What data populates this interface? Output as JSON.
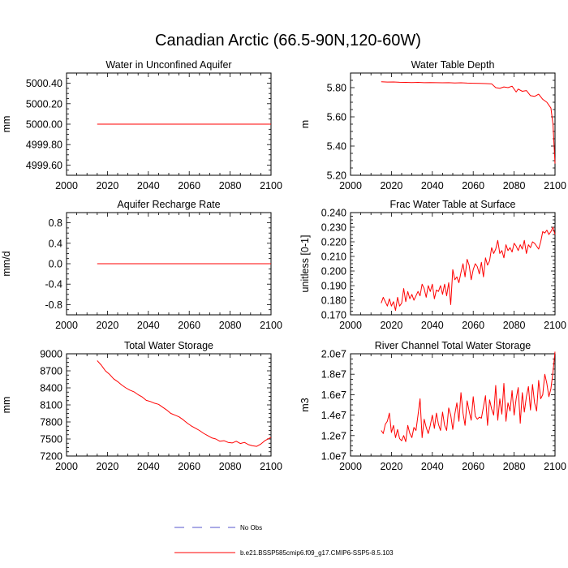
{
  "figure": {
    "title": "Canadian Arctic (66.5-90N,120-60W)",
    "legend": [
      {
        "label": "No Obs",
        "style": "dashed",
        "color": "#5555cc"
      },
      {
        "label": "b.e21.BSSP585cmip6.f09_g17.CMIP6-SSP5-8.5.103",
        "style": "solid",
        "color": "#ff0000"
      }
    ]
  },
  "chart_data": [
    {
      "id": "p1",
      "type": "line",
      "title": "Water in Unconfined Aquifer",
      "ylabel": "mm",
      "xlim": [
        2000,
        2100
      ],
      "xticks": [
        2000,
        2020,
        2040,
        2060,
        2080,
        2100
      ],
      "ylim": [
        4999.5,
        5000.5
      ],
      "yticks": [
        4999.6,
        4999.8,
        5000.0,
        5000.2,
        5000.4
      ],
      "yticklabels": [
        "4999.60",
        "4999.80",
        "5000.00",
        "5000.20",
        "5000.40"
      ],
      "series": [
        {
          "name": "b.e21.BSSP585cmip6.f09_g17.CMIP6-SSP5-8.5.103",
          "color": "#ff0000",
          "x": [
            2015,
            2100
          ],
          "y": [
            5000.0,
            5000.0
          ]
        }
      ]
    },
    {
      "id": "p2",
      "type": "line",
      "title": "Water Table Depth",
      "ylabel": "m",
      "xlim": [
        2000,
        2100
      ],
      "xticks": [
        2000,
        2020,
        2040,
        2060,
        2080,
        2100
      ],
      "ylim": [
        5.2,
        5.9
      ],
      "yticks": [
        5.2,
        5.4,
        5.6,
        5.8
      ],
      "yticklabels": [
        "5.20",
        "5.40",
        "5.60",
        "5.80"
      ],
      "series": [
        {
          "name": "b.e21.BSSP585cmip6.f09_g17.CMIP6-SSP5-8.5.103",
          "color": "#ff0000",
          "x": [
            2015,
            2018,
            2021,
            2024,
            2027,
            2030,
            2033,
            2036,
            2039,
            2042,
            2045,
            2048,
            2051,
            2054,
            2057,
            2060,
            2063,
            2066,
            2069,
            2071,
            2073,
            2075,
            2077,
            2079,
            2081,
            2082,
            2084,
            2086,
            2088,
            2090,
            2092,
            2094,
            2096,
            2098,
            2099,
            2100
          ],
          "y": [
            5.84,
            5.838,
            5.839,
            5.837,
            5.836,
            5.835,
            5.836,
            5.834,
            5.835,
            5.834,
            5.833,
            5.834,
            5.832,
            5.833,
            5.831,
            5.83,
            5.829,
            5.828,
            5.826,
            5.8,
            5.795,
            5.805,
            5.8,
            5.81,
            5.77,
            5.79,
            5.775,
            5.78,
            5.745,
            5.74,
            5.755,
            5.72,
            5.7,
            5.66,
            5.55,
            5.28
          ]
        }
      ]
    },
    {
      "id": "p3",
      "type": "line",
      "title": "Aquifer Recharge Rate",
      "ylabel": "mm/d",
      "xlim": [
        2000,
        2100
      ],
      "xticks": [
        2000,
        2020,
        2040,
        2060,
        2080,
        2100
      ],
      "ylim": [
        -1.0,
        1.0
      ],
      "yticks": [
        -0.8,
        -0.4,
        0.0,
        0.4,
        0.8
      ],
      "yticklabels": [
        "-0.8",
        "-0.4",
        "0.0",
        "0.4",
        "0.8"
      ],
      "series": [
        {
          "name": "b.e21.BSSP585cmip6.f09_g17.CMIP6-SSP5-8.5.103",
          "color": "#ff0000",
          "x": [
            2015,
            2100
          ],
          "y": [
            0.0,
            0.0
          ]
        }
      ]
    },
    {
      "id": "p4",
      "type": "line",
      "title": "Frac Water Table at Surface",
      "ylabel": "unitless [0-1]",
      "xlim": [
        2000,
        2100
      ],
      "xticks": [
        2000,
        2020,
        2040,
        2060,
        2080,
        2100
      ],
      "ylim": [
        0.17,
        0.24
      ],
      "yticks": [
        0.17,
        0.18,
        0.19,
        0.2,
        0.21,
        0.22,
        0.23,
        0.24
      ],
      "yticklabels": [
        "0.170",
        "0.180",
        "0.190",
        "0.200",
        "0.210",
        "0.220",
        "0.230",
        "0.240"
      ],
      "series": [
        {
          "name": "b.e21.BSSP585cmip6.f09_g17.CMIP6-SSP5-8.5.103",
          "color": "#ff0000",
          "x": [
            2015,
            2016,
            2017,
            2018,
            2019,
            2020,
            2021,
            2022,
            2023,
            2024,
            2025,
            2026,
            2027,
            2028,
            2029,
            2030,
            2031,
            2032,
            2033,
            2034,
            2035,
            2036,
            2037,
            2038,
            2039,
            2040,
            2041,
            2042,
            2043,
            2044,
            2045,
            2046,
            2047,
            2048,
            2049,
            2050,
            2051,
            2052,
            2053,
            2054,
            2055,
            2056,
            2057,
            2058,
            2059,
            2060,
            2061,
            2062,
            2063,
            2064,
            2065,
            2066,
            2067,
            2068,
            2069,
            2070,
            2071,
            2072,
            2073,
            2074,
            2075,
            2076,
            2077,
            2078,
            2079,
            2080,
            2081,
            2082,
            2083,
            2084,
            2085,
            2086,
            2087,
            2088,
            2089,
            2090,
            2091,
            2092,
            2093,
            2094,
            2095,
            2096,
            2097,
            2098,
            2099,
            2100
          ],
          "y": [
            0.178,
            0.182,
            0.179,
            0.176,
            0.181,
            0.176,
            0.179,
            0.173,
            0.182,
            0.176,
            0.178,
            0.188,
            0.179,
            0.186,
            0.181,
            0.184,
            0.18,
            0.183,
            0.186,
            0.183,
            0.191,
            0.188,
            0.182,
            0.19,
            0.186,
            0.191,
            0.181,
            0.187,
            0.186,
            0.19,
            0.184,
            0.191,
            0.183,
            0.192,
            0.177,
            0.201,
            0.194,
            0.196,
            0.192,
            0.199,
            0.205,
            0.196,
            0.208,
            0.204,
            0.194,
            0.201,
            0.205,
            0.203,
            0.198,
            0.206,
            0.196,
            0.209,
            0.204,
            0.207,
            0.216,
            0.212,
            0.215,
            0.221,
            0.212,
            0.214,
            0.209,
            0.218,
            0.214,
            0.216,
            0.213,
            0.219,
            0.217,
            0.214,
            0.218,
            0.215,
            0.221,
            0.212,
            0.218,
            0.216,
            0.22,
            0.219,
            0.217,
            0.215,
            0.22,
            0.227,
            0.226,
            0.228,
            0.225,
            0.227,
            0.23,
            0.225
          ]
        }
      ]
    },
    {
      "id": "p5",
      "type": "line",
      "title": "Total Water Storage",
      "ylabel": "mm",
      "xlim": [
        2000,
        2100
      ],
      "xticks": [
        2000,
        2020,
        2040,
        2060,
        2080,
        2100
      ],
      "ylim": [
        7200,
        9000
      ],
      "yticks": [
        7200,
        7500,
        7800,
        8100,
        8400,
        8700,
        9000
      ],
      "yticklabels": [
        "7200",
        "7500",
        "7800",
        "8100",
        "8400",
        "8700",
        "9000"
      ],
      "series": [
        {
          "name": "b.e21.BSSP585cmip6.f09_g17.CMIP6-SSP5-8.5.103",
          "color": "#ff0000",
          "x": [
            2015,
            2017,
            2019,
            2021,
            2023,
            2025,
            2027,
            2029,
            2031,
            2033,
            2035,
            2037,
            2039,
            2041,
            2043,
            2045,
            2047,
            2049,
            2051,
            2053,
            2055,
            2057,
            2059,
            2061,
            2063,
            2065,
            2067,
            2069,
            2071,
            2073,
            2075,
            2077,
            2079,
            2081,
            2083,
            2085,
            2087,
            2089,
            2091,
            2093,
            2095,
            2097,
            2100
          ],
          "y": [
            8880,
            8800,
            8700,
            8640,
            8560,
            8510,
            8450,
            8400,
            8360,
            8330,
            8280,
            8240,
            8180,
            8160,
            8130,
            8110,
            8060,
            8010,
            7950,
            7920,
            7890,
            7840,
            7780,
            7730,
            7690,
            7650,
            7600,
            7560,
            7520,
            7500,
            7460,
            7470,
            7440,
            7430,
            7460,
            7420,
            7440,
            7400,
            7380,
            7370,
            7410,
            7470,
            7530
          ]
        }
      ]
    },
    {
      "id": "p6",
      "type": "line",
      "title": "River Channel Total Water Storage",
      "ylabel": "m3",
      "xlim": [
        2000,
        2100
      ],
      "xticks": [
        2000,
        2020,
        2040,
        2060,
        2080,
        2100
      ],
      "ylim": [
        10000000,
        20000000
      ],
      "yticks": [
        10000000,
        12000000,
        14000000,
        16000000,
        18000000,
        20000000
      ],
      "yticklabels": [
        "1.0e7",
        "1.2e7",
        "1.4e7",
        "1.6e7",
        "1.8e7",
        "2.0e7"
      ],
      "series": [
        {
          "name": "b.e21.BSSP585cmip6.f09_g17.CMIP6-SSP5-8.5.103",
          "color": "#ff0000",
          "x": [
            2015,
            2016,
            2017,
            2018,
            2019,
            2020,
            2021,
            2022,
            2023,
            2024,
            2025,
            2026,
            2027,
            2028,
            2029,
            2030,
            2031,
            2032,
            2033,
            2034,
            2035,
            2036,
            2037,
            2038,
            2039,
            2040,
            2041,
            2042,
            2043,
            2044,
            2045,
            2046,
            2047,
            2048,
            2049,
            2050,
            2051,
            2052,
            2053,
            2054,
            2055,
            2056,
            2057,
            2058,
            2059,
            2060,
            2061,
            2062,
            2063,
            2064,
            2065,
            2066,
            2067,
            2068,
            2069,
            2070,
            2071,
            2072,
            2073,
            2074,
            2075,
            2076,
            2077,
            2078,
            2079,
            2080,
            2081,
            2082,
            2083,
            2084,
            2085,
            2086,
            2087,
            2088,
            2089,
            2090,
            2091,
            2092,
            2093,
            2094,
            2095,
            2096,
            2097,
            2098,
            2099,
            2100
          ],
          "y": [
            12500000,
            12200000,
            13100000,
            13400000,
            14200000,
            12300000,
            13000000,
            11800000,
            12600000,
            11700000,
            11500000,
            12000000,
            11400000,
            13000000,
            12200000,
            11800000,
            12800000,
            12500000,
            14000000,
            15600000,
            11800000,
            13600000,
            12800000,
            12200000,
            13000000,
            14000000,
            12700000,
            14200000,
            13100000,
            12500000,
            14300000,
            13000000,
            12500000,
            14700000,
            14000000,
            12600000,
            14100000,
            15200000,
            13400000,
            16200000,
            14200000,
            13000000,
            15400000,
            14400000,
            13500000,
            15800000,
            13900000,
            13600000,
            13800000,
            13700000,
            14800000,
            15900000,
            13000000,
            15500000,
            14600000,
            14000000,
            16900000,
            13500000,
            15600000,
            14100000,
            17100000,
            13400000,
            15200000,
            14400000,
            16400000,
            14000000,
            15600000,
            16700000,
            13200000,
            16200000,
            14300000,
            15800000,
            16800000,
            14500000,
            17000000,
            15200000,
            14400000,
            17400000,
            15600000,
            16000000,
            18000000,
            17100000,
            15800000,
            16600000,
            18200000,
            20200000
          ]
        }
      ]
    }
  ]
}
